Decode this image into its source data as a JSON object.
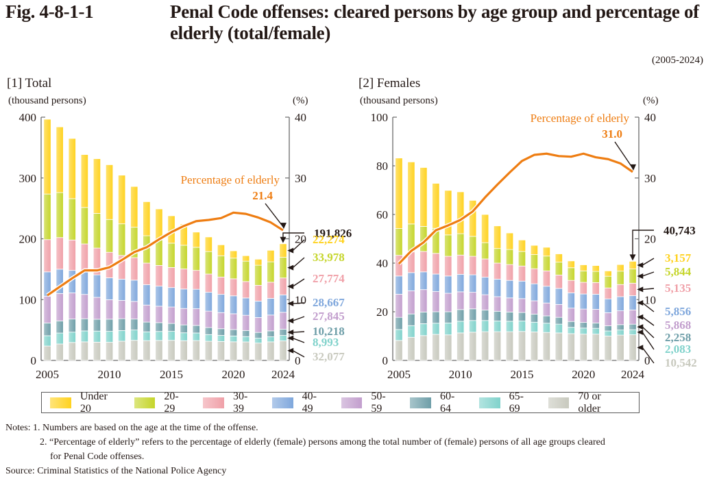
{
  "figure": {
    "number": "Fig. 4-8-1-1",
    "title_line1": "Penal Code offenses: cleared persons by age group and percentage of",
    "title_line2": "elderly (total/female)",
    "period": "(2005-2024)"
  },
  "legend": [
    {
      "label": "Under 20",
      "color": "#FFD21F"
    },
    {
      "label": "20-29",
      "color": "#C5D52A"
    },
    {
      "label": "30-39",
      "color": "#F0A0A8"
    },
    {
      "label": "40-49",
      "color": "#7FA7DC"
    },
    {
      "label": "50-59",
      "color": "#C29ECD"
    },
    {
      "label": "60-64",
      "color": "#6E9EA8"
    },
    {
      "label": "65-69",
      "color": "#80D2CB"
    },
    {
      "label": "70 or older",
      "color": "#C8C9BE"
    }
  ],
  "line_color": "#EE7D12",
  "notes": {
    "note1": "Notes: 1. Numbers are based on the age at the time of the offense.",
    "note2": "2. “Percentage of elderly” refers to the percentage of elderly (female) persons among the total number of (female) persons of all age groups cleared",
    "note2b": "for Penal Code offenses.",
    "source": "Source: Criminal Statistics of the National Police Agency"
  },
  "chart_data": [
    {
      "type": "bar",
      "stacked": true,
      "panel_title": "[1] Total",
      "title": "[1] Total",
      "ylabel": "(thousand persons)",
      "y2label": "(%)",
      "ylim": [
        0,
        400
      ],
      "yticks": [
        0,
        100,
        200,
        300,
        400
      ],
      "y2lim": [
        0,
        40
      ],
      "y2ticks": [
        0,
        10,
        20,
        30,
        40
      ],
      "xticks": [
        "2005",
        "2010",
        "2015",
        "2020",
        "2024"
      ],
      "categories": [
        "2005",
        "2006",
        "2007",
        "2008",
        "2009",
        "2010",
        "2011",
        "2012",
        "2013",
        "2014",
        "2015",
        "2016",
        "2017",
        "2018",
        "2019",
        "2020",
        "2021",
        "2022",
        "2023",
        "2024"
      ],
      "series": [
        {
          "name": "70 or older",
          "values": [
            23.6,
            27.0,
            29.5,
            30.5,
            30.0,
            29.8,
            31.6,
            33.0,
            32.5,
            32.8,
            33.0,
            32.4,
            32.6,
            31.5,
            31.1,
            30.6,
            30.4,
            28.5,
            30.5,
            32.077
          ]
        },
        {
          "name": "65-69",
          "values": [
            17.0,
            18.0,
            17.0,
            18.0,
            18.2,
            18.0,
            17.5,
            17.0,
            14.5,
            14.8,
            14.8,
            13.0,
            12.5,
            11.0,
            10.0,
            9.6,
            8.8,
            8.0,
            8.3,
            8.993
          ]
        },
        {
          "name": "60-64",
          "values": [
            21.0,
            20.0,
            21.5,
            20.0,
            19.5,
            20.0,
            19.5,
            18.0,
            16.0,
            14.5,
            13.0,
            13.0,
            12.4,
            11.5,
            11.0,
            10.5,
            10.0,
            9.5,
            9.8,
            10.218
          ]
        },
        {
          "name": "50-59",
          "values": [
            44.0,
            45.0,
            43.0,
            40.0,
            36.0,
            32.0,
            30.0,
            29.0,
            28.0,
            27.0,
            27.0,
            27.0,
            27.5,
            27.0,
            26.5,
            26.0,
            25.0,
            24.5,
            26.0,
            27.845
          ]
        },
        {
          "name": "40-49",
          "values": [
            40.0,
            40.0,
            37.0,
            37.0,
            37.0,
            36.0,
            35.0,
            35.0,
            33.5,
            33.0,
            32.0,
            32.0,
            32.0,
            31.0,
            30.0,
            29.5,
            28.5,
            27.0,
            27.5,
            28.667
          ]
        },
        {
          "name": "30-39",
          "values": [
            53.0,
            52.0,
            50.0,
            46.0,
            44.0,
            42.0,
            39.0,
            37.0,
            35.5,
            34.0,
            33.0,
            33.0,
            31.0,
            30.0,
            28.5,
            28.0,
            27.0,
            26.0,
            26.5,
            27.774
          ]
        },
        {
          "name": "20-29",
          "values": [
            75.0,
            74.0,
            68.0,
            60.0,
            57.0,
            54.0,
            52.0,
            50.0,
            45.0,
            42.0,
            40.0,
            39.0,
            38.0,
            37.0,
            35.0,
            34.0,
            33.5,
            33.0,
            33.5,
            33.978
          ]
        },
        {
          "name": "Under 20",
          "values": [
            123.0,
            108.0,
            99.0,
            87.0,
            90.0,
            90.0,
            80.0,
            67.0,
            56.0,
            51.0,
            45.0,
            35.0,
            25.0,
            24.0,
            18.0,
            12.0,
            9.0,
            10.0,
            19.0,
            22.274
          ]
        }
      ],
      "line": {
        "name": "Percentage of elderly",
        "values": [
          10.7,
          12.1,
          13.5,
          14.8,
          14.8,
          15.3,
          16.5,
          17.8,
          18.6,
          19.9,
          21.1,
          22.1,
          22.9,
          23.1,
          23.4,
          24.3,
          24.1,
          23.5,
          22.7,
          21.4
        ]
      },
      "annotations": {
        "line_label": "Percentage of elderly",
        "last_pct": "21.4",
        "total_2024": "191,826",
        "segments_2024": [
          "22,274",
          "33,978",
          "27,774",
          "28,667",
          "27,845",
          "10,218",
          "8,993",
          "32,077"
        ]
      }
    },
    {
      "type": "bar",
      "stacked": true,
      "panel_title": "[2] Females",
      "title": "[2] Females",
      "ylabel": "(thousand persons)",
      "y2label": "(%)",
      "ylim": [
        0,
        100
      ],
      "yticks": [
        0,
        20,
        40,
        60,
        80,
        100
      ],
      "y2lim": [
        0,
        40
      ],
      "y2ticks": [
        0,
        10,
        20,
        30,
        40
      ],
      "xticks": [
        "2005",
        "2010",
        "2015",
        "2020",
        "2024"
      ],
      "categories": [
        "2005",
        "2006",
        "2007",
        "2008",
        "2009",
        "2010",
        "2011",
        "2012",
        "2013",
        "2014",
        "2015",
        "2016",
        "2017",
        "2018",
        "2019",
        "2020",
        "2021",
        "2022",
        "2023",
        "2024"
      ],
      "series": [
        {
          "name": "70 or older",
          "values": [
            8.2,
            9.5,
            10.2,
            10.7,
            10.5,
            11.3,
            11.6,
            11.8,
            11.8,
            11.8,
            11.9,
            11.7,
            11.5,
            11.3,
            11.0,
            10.8,
            10.8,
            10.0,
            10.4,
            10.542
          ]
        },
        {
          "name": "65-69",
          "values": [
            4.5,
            4.8,
            4.9,
            4.6,
            4.9,
            4.8,
            4.8,
            4.6,
            4.4,
            4.3,
            4.3,
            4.0,
            3.8,
            3.6,
            2.6,
            2.5,
            2.4,
            2.1,
            2.1,
            2.083
          ]
        },
        {
          "name": "60-64",
          "values": [
            5.0,
            4.8,
            4.8,
            4.7,
            4.6,
            4.8,
            4.8,
            4.3,
            4.0,
            3.8,
            3.5,
            3.3,
            3.0,
            2.8,
            2.4,
            2.3,
            2.2,
            2.1,
            2.2,
            2.258
          ]
        },
        {
          "name": "50-59",
          "values": [
            9.5,
            9.5,
            9.2,
            8.3,
            7.6,
            7.3,
            6.8,
            6.3,
            6.0,
            5.8,
            5.7,
            5.5,
            5.3,
            5.3,
            5.5,
            5.5,
            5.6,
            5.4,
            5.7,
            5.868
          ]
        },
        {
          "name": "40-49",
          "values": [
            7.5,
            7.5,
            7.3,
            7.2,
            7.1,
            7.2,
            7.2,
            7.2,
            7.2,
            7.2,
            7.2,
            7.0,
            6.9,
            6.6,
            6.3,
            6.2,
            6.2,
            5.7,
            5.8,
            5.856
          ]
        },
        {
          "name": "30-39",
          "values": [
            8.5,
            8.5,
            8.4,
            8.5,
            8.1,
            7.9,
            7.6,
            7.5,
            6.6,
            6.5,
            6.2,
            6.2,
            6.3,
            5.5,
            5.1,
            4.8,
            4.8,
            4.5,
            5.0,
            5.135
          ]
        },
        {
          "name": "20-29",
          "values": [
            11.0,
            11.5,
            10.3,
            10.3,
            8.8,
            8.8,
            8.2,
            6.7,
            6.0,
            6.2,
            6.0,
            5.8,
            6.1,
            5.3,
            5.2,
            4.7,
            4.6,
            4.8,
            5.5,
            5.844
          ]
        },
        {
          "name": "Under 20",
          "values": [
            29.0,
            25.5,
            24.2,
            18.5,
            18.3,
            17.2,
            14.8,
            11.6,
            9.3,
            6.8,
            4.7,
            3.8,
            3.6,
            3.4,
            2.8,
            2.5,
            2.4,
            2.2,
            2.7,
            3.157
          ]
        }
      ],
      "line": {
        "name": "Percentage of elderly",
        "values": [
          15.9,
          18.0,
          19.4,
          21.4,
          22.2,
          23.1,
          24.5,
          26.8,
          28.9,
          30.9,
          32.8,
          33.8,
          34.0,
          33.6,
          33.5,
          34.0,
          33.4,
          33.1,
          32.4,
          31.0
        ]
      },
      "annotations": {
        "line_label": "Percentage of elderly",
        "last_pct": "31.0",
        "total_2024": "40,743",
        "segments_2024": [
          "3,157",
          "5,844",
          "5,135",
          "5,856",
          "5,868",
          "2,258",
          "2,083",
          "10,542"
        ]
      }
    }
  ]
}
